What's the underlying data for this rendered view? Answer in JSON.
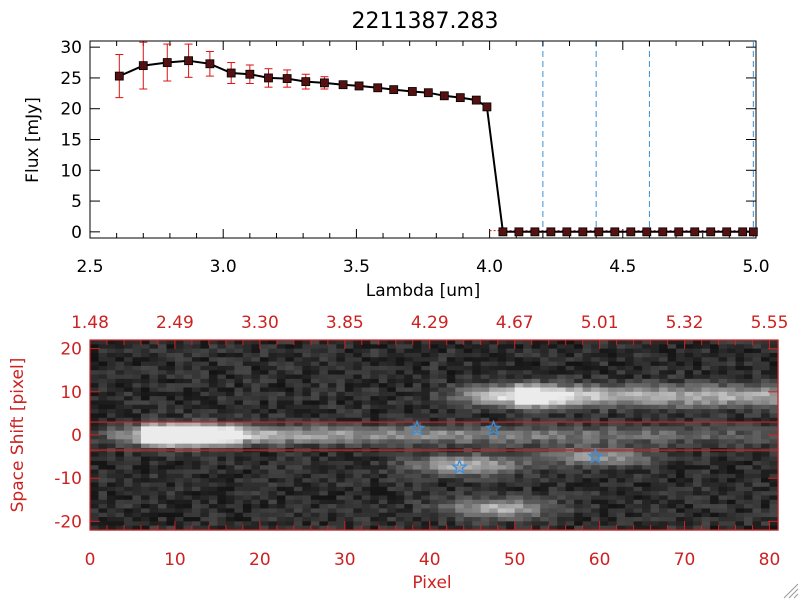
{
  "colors": {
    "axis": "#000000",
    "red": "#cc2222",
    "errorbar": "#dd1111",
    "vline": "#3a8fd8",
    "star": "#3a8fd8",
    "marker": "#551111"
  },
  "chart_data": [
    {
      "type": "line",
      "title": "2211387.283",
      "xlabel": "Lambda [um]",
      "ylabel": "Flux [mJy]",
      "xlim": [
        2.5,
        5.0
      ],
      "ylim": [
        -1,
        31
      ],
      "xticks": [
        2.5,
        3.0,
        3.5,
        4.0,
        4.5,
        5.0
      ],
      "xtick_labels": [
        "2.5",
        "3.0",
        "3.5",
        "4.0",
        "4.5",
        "5.0"
      ],
      "yticks": [
        0,
        5,
        10,
        15,
        20,
        25,
        30
      ],
      "ytick_labels": [
        "0",
        "5",
        "10",
        "15",
        "20",
        "25",
        "30"
      ],
      "series": [
        {
          "name": "flux",
          "x": [
            2.61,
            2.7,
            2.79,
            2.87,
            2.95,
            3.03,
            3.1,
            3.17,
            3.24,
            3.31,
            3.38,
            3.45,
            3.51,
            3.58,
            3.64,
            3.71,
            3.77,
            3.83,
            3.89,
            3.95,
            3.99,
            4.05,
            4.11,
            4.17,
            4.23,
            4.29,
            4.35,
            4.41,
            4.47,
            4.53,
            4.59,
            4.65,
            4.71,
            4.77,
            4.83,
            4.89,
            4.95,
            4.99
          ],
          "y": [
            25.3,
            27.0,
            27.5,
            27.8,
            27.3,
            25.8,
            25.6,
            25.0,
            24.9,
            24.4,
            24.2,
            23.9,
            23.7,
            23.4,
            23.1,
            22.8,
            22.6,
            22.1,
            21.8,
            21.4,
            20.3,
            0,
            0,
            0,
            0,
            0,
            0,
            0,
            0,
            0,
            0,
            0,
            0,
            0,
            0,
            0,
            0,
            0
          ],
          "yerr": [
            3.5,
            3.8,
            3.0,
            2.7,
            2.0,
            1.7,
            1.5,
            1.5,
            1.4,
            1.2,
            1.0,
            0.6,
            0.6,
            0.5,
            0.5,
            0.5,
            0.5,
            0.5,
            0.5,
            0.5,
            0.5,
            0,
            0,
            0,
            0,
            0,
            0,
            0,
            0,
            0,
            0,
            0,
            0,
            0,
            0,
            0,
            0,
            0
          ]
        }
      ],
      "vlines": [
        4.2,
        4.4,
        4.6,
        4.99
      ]
    },
    {
      "type": "heatmap",
      "xlabel": "Pixel",
      "ylabel": "Space Shift [pixel]",
      "xlim": [
        0,
        81
      ],
      "ylim": [
        -22,
        22
      ],
      "xticks": [
        0,
        10,
        20,
        30,
        40,
        50,
        60,
        70,
        80
      ],
      "xtick_labels": [
        "0",
        "10",
        "20",
        "30",
        "40",
        "50",
        "60",
        "70",
        "80"
      ],
      "yticks": [
        -20,
        -10,
        0,
        10,
        20
      ],
      "ytick_labels": [
        "-20",
        "-10",
        "0",
        "10",
        "20"
      ],
      "top_axis_labels": [
        "1.48",
        "2.49",
        "3.30",
        "3.85",
        "4.29",
        "4.67",
        "5.01",
        "5.32",
        "5.55"
      ],
      "hlines": [
        3,
        -3.5
      ],
      "stars": [
        {
          "x": 38.5,
          "y": 1.5
        },
        {
          "x": 47.5,
          "y": 1.5
        },
        {
          "x": 43.5,
          "y": -7.5
        },
        {
          "x": 59.5,
          "y": -5
        }
      ],
      "sources": [
        {
          "x": 10,
          "y": 0,
          "peak": 1.0
        },
        {
          "x": 50,
          "y": 9,
          "peak": 0.85
        },
        {
          "x": 44,
          "y": -7,
          "peak": 0.6
        },
        {
          "x": 48,
          "y": -17,
          "peak": 0.55
        },
        {
          "x": 60,
          "y": -5,
          "peak": 0.45
        }
      ]
    }
  ]
}
